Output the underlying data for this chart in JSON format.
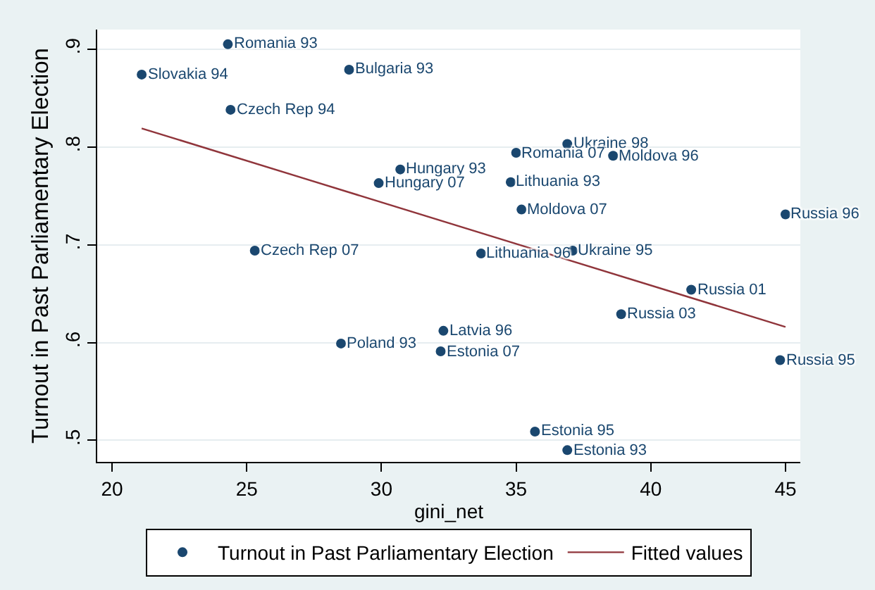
{
  "chart_data": {
    "type": "scatter",
    "xlabel": "gini_net",
    "ylabel": "Turnout in Past Parliamentary Election",
    "xlim": [
      19.45,
      45.55
    ],
    "ylim": [
      0.478,
      0.92
    ],
    "xticks": [
      20,
      25,
      30,
      35,
      40,
      45
    ],
    "yticks": [
      {
        "value": 0.5,
        "label": ".5"
      },
      {
        "value": 0.6,
        "label": ".6"
      },
      {
        "value": 0.7,
        "label": ".7"
      },
      {
        "value": 0.8,
        "label": ".8"
      },
      {
        "value": 0.9,
        "label": ".9"
      }
    ],
    "grid": "y",
    "legend": "bottom",
    "series": [
      {
        "name": "Turnout in Past Parliamentary Election",
        "marker": "circle",
        "color": "#1a476f",
        "x": [
          24.3,
          21.1,
          28.8,
          24.4,
          30.7,
          29.9,
          25.3,
          36.9,
          35.0,
          38.6,
          34.8,
          35.2,
          45.0,
          33.7,
          37.1,
          41.5,
          38.9,
          32.3,
          32.2,
          44.8,
          35.7,
          36.9,
          28.5
        ],
        "values": [
          0.905,
          0.874,
          0.879,
          0.838,
          0.777,
          0.763,
          0.694,
          0.803,
          0.794,
          0.791,
          0.764,
          0.736,
          0.731,
          0.691,
          0.694,
          0.654,
          0.629,
          0.612,
          0.591,
          0.582,
          0.509,
          0.49,
          0.599
        ]
      },
      {
        "name": "Fitted values",
        "type": "line",
        "color": "#90353b",
        "x": [
          21.1,
          45.0
        ],
        "values": [
          0.819,
          0.616
        ]
      }
    ],
    "annotations": [
      {
        "text": "Romania 93",
        "x": 24.3,
        "y": 0.905
      },
      {
        "text": "Slovakia 94",
        "x": 21.1,
        "y": 0.874
      },
      {
        "text": "Bulgaria 93",
        "x": 28.8,
        "y": 0.879
      },
      {
        "text": "Czech Rep 94",
        "x": 24.4,
        "y": 0.838
      },
      {
        "text": "Hungary 93",
        "x": 30.7,
        "y": 0.777
      },
      {
        "text": "Hungary 07",
        "x": 29.9,
        "y": 0.763
      },
      {
        "text": "Czech Rep 07",
        "x": 25.3,
        "y": 0.694
      },
      {
        "text": "Ukraine 98",
        "x": 36.9,
        "y": 0.803
      },
      {
        "text": "Romania 07",
        "x": 35.0,
        "y": 0.794
      },
      {
        "text": "Moldova 96",
        "x": 38.6,
        "y": 0.791
      },
      {
        "text": "Lithuania 93",
        "x": 34.8,
        "y": 0.764
      },
      {
        "text": "Moldova 07",
        "x": 35.2,
        "y": 0.736
      },
      {
        "text": "Russia 96",
        "x": 45.0,
        "y": 0.731
      },
      {
        "text": "Lithuania 96",
        "x": 33.7,
        "y": 0.691
      },
      {
        "text": "Ukraine 95",
        "x": 37.1,
        "y": 0.694
      },
      {
        "text": "Russia 01",
        "x": 41.5,
        "y": 0.654
      },
      {
        "text": "Russia 03",
        "x": 38.9,
        "y": 0.629
      },
      {
        "text": "Latvia 96",
        "x": 32.3,
        "y": 0.612
      },
      {
        "text": "Estonia 07",
        "x": 32.2,
        "y": 0.591
      },
      {
        "text": "Russia 95",
        "x": 44.8,
        "y": 0.582
      },
      {
        "text": "Estonia 95",
        "x": 35.7,
        "y": 0.509
      },
      {
        "text": "Estonia 93",
        "x": 36.9,
        "y": 0.49
      },
      {
        "text": "Poland 93",
        "x": 28.5,
        "y": 0.599
      }
    ]
  }
}
